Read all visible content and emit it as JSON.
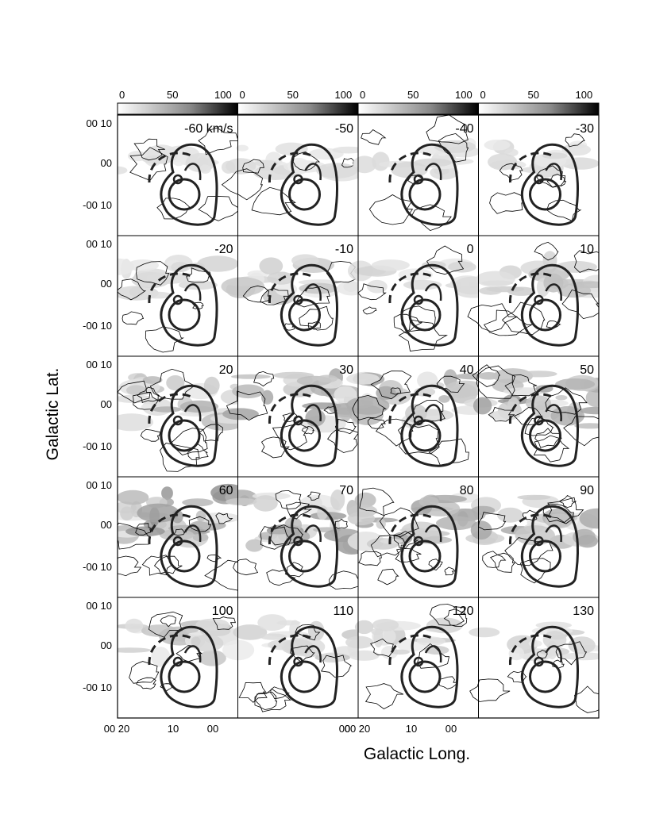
{
  "figure": {
    "colorbar_ticks": [
      "0",
      "50",
      "100"
    ],
    "y_axis_label": "Galactic Lat.",
    "x_axis_label": "Galactic Long.",
    "lat_ticks": [
      "00 10",
      "00",
      "-00 10"
    ],
    "long_ticks": [
      "00 20",
      "10",
      "00"
    ],
    "long_tick_right": "00",
    "panel_labels": [
      "-60 km/s",
      "-50",
      "-40",
      "-30",
      "-20",
      "-10",
      "0",
      "10",
      "20",
      "30",
      "40",
      "50",
      "60",
      "70",
      "80",
      "90",
      "100",
      "110",
      "120",
      "130"
    ],
    "grayscale_range": [
      0,
      130
    ],
    "channel_intensity": [
      0.1,
      0.12,
      0.15,
      0.15,
      0.18,
      0.28,
      0.15,
      0.3,
      0.45,
      0.5,
      0.5,
      0.55,
      0.6,
      0.55,
      0.5,
      0.45,
      0.3,
      0.28,
      0.22,
      0.18
    ]
  }
}
